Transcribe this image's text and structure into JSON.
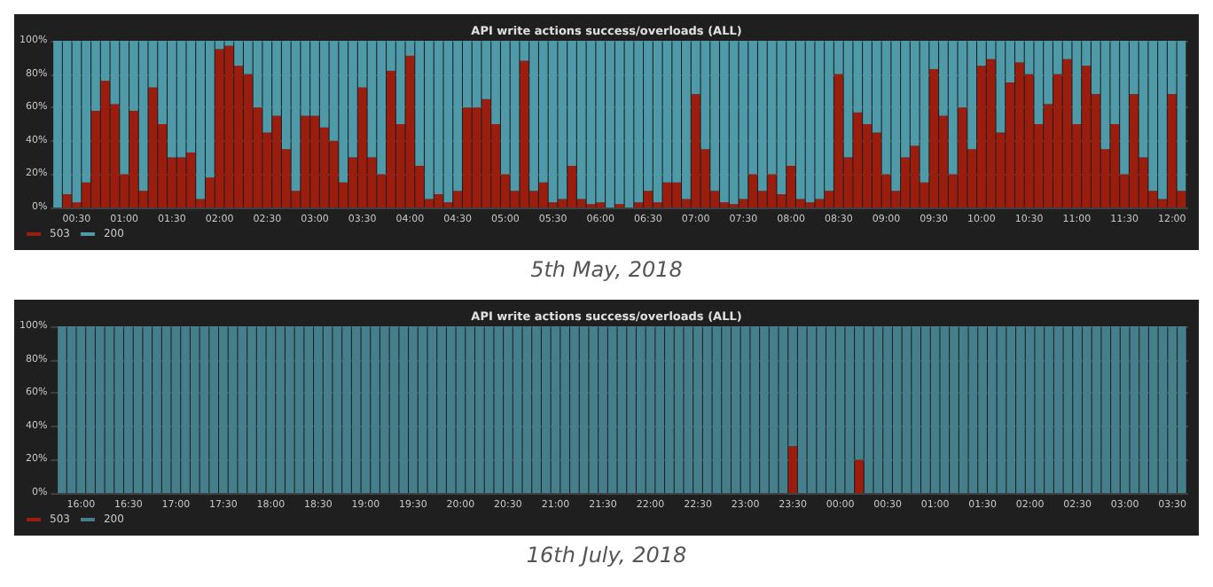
{
  "chart_data": [
    {
      "type": "bar",
      "title": "API write actions success/overloads (ALL)",
      "stacked": true,
      "grid": true,
      "legend": "bottom left",
      "annotations": [
        "5th May, 2018"
      ],
      "xlim": [
        0.23,
        12.17
      ],
      "ylim": [
        0,
        100
      ],
      "xticks": [
        {
          "value": 0.5,
          "label": "00:30"
        },
        {
          "value": 1,
          "label": "01:00"
        },
        {
          "value": 1.5,
          "label": "01:30"
        },
        {
          "value": 2,
          "label": "02:00"
        },
        {
          "value": 2.5,
          "label": "02:30"
        },
        {
          "value": 3,
          "label": "03:00"
        },
        {
          "value": 3.5,
          "label": "03:30"
        },
        {
          "value": 4,
          "label": "04:00"
        },
        {
          "value": 4.5,
          "label": "04:30"
        },
        {
          "value": 5,
          "label": "05:00"
        },
        {
          "value": 5.5,
          "label": "05:30"
        },
        {
          "value": 6,
          "label": "06:00"
        },
        {
          "value": 6.5,
          "label": "06:30"
        },
        {
          "value": 7,
          "label": "07:00"
        },
        {
          "value": 7.5,
          "label": "07:30"
        },
        {
          "value": 8,
          "label": "08:00"
        },
        {
          "value": 8.5,
          "label": "08:30"
        },
        {
          "value": 9,
          "label": "09:00"
        },
        {
          "value": 9.5,
          "label": "09:30"
        },
        {
          "value": 10,
          "label": "10:00"
        },
        {
          "value": 10.5,
          "label": "10:30"
        },
        {
          "value": 11,
          "label": "11:00"
        },
        {
          "value": 11.5,
          "label": "11:30"
        },
        {
          "value": 12,
          "label": "12:00"
        }
      ],
      "yticks": [
        {
          "value": 0,
          "label": "0%"
        },
        {
          "value": 20,
          "label": "20%"
        },
        {
          "value": 40,
          "label": "40%"
        },
        {
          "value": 60,
          "label": "60%"
        },
        {
          "value": 80,
          "label": "80%"
        },
        {
          "value": 100,
          "label": "100%"
        }
      ],
      "x": [
        0.3,
        0.4,
        0.5,
        0.6,
        0.7,
        0.8,
        0.9,
        1.0,
        1.1,
        1.2,
        1.3,
        1.4,
        1.5,
        1.6,
        1.7,
        1.8,
        1.9,
        2.0,
        2.1,
        2.2,
        2.3,
        2.4,
        2.5,
        2.6,
        2.7,
        2.8,
        2.9,
        3.0,
        3.1,
        3.2,
        3.3,
        3.4,
        3.5,
        3.6,
        3.7,
        3.8,
        3.9,
        4.0,
        4.1,
        4.2,
        4.3,
        4.4,
        4.5,
        4.6,
        4.7,
        4.8,
        4.9,
        5.0,
        5.1,
        5.2,
        5.3,
        5.4,
        5.5,
        5.6,
        5.7,
        5.8,
        5.9,
        6.0,
        6.1,
        6.2,
        6.3,
        6.4,
        6.5,
        6.6,
        6.7,
        6.8,
        6.9,
        7.0,
        7.1,
        7.2,
        7.3,
        7.4,
        7.5,
        7.6,
        7.7,
        7.8,
        7.9,
        8.0,
        8.1,
        8.2,
        8.3,
        8.4,
        8.5,
        8.6,
        8.7,
        8.8,
        8.9,
        9.0,
        9.1,
        9.2,
        9.3,
        9.4,
        9.5,
        9.6,
        9.7,
        9.8,
        9.9,
        10.0,
        10.1,
        10.2,
        10.3,
        10.4,
        10.5,
        10.6,
        10.7,
        10.8,
        10.9,
        11.0,
        11.1,
        11.2,
        11.3,
        11.4,
        11.5,
        11.6,
        11.7,
        11.8,
        11.9,
        12.0,
        12.1
      ],
      "series": [
        {
          "name": "503",
          "color": "#9b1d0e",
          "values": [
            0,
            8,
            3,
            15,
            58,
            76,
            62,
            20,
            58,
            10,
            72,
            50,
            30,
            30,
            33,
            5,
            18,
            95,
            97,
            85,
            80,
            60,
            45,
            55,
            35,
            10,
            55,
            55,
            48,
            40,
            15,
            30,
            72,
            30,
            20,
            82,
            50,
            91,
            25,
            5,
            8,
            3,
            10,
            60,
            60,
            65,
            50,
            20,
            10,
            88,
            10,
            15,
            3,
            5,
            25,
            5,
            2,
            3,
            0,
            2,
            0,
            3,
            10,
            3,
            15,
            15,
            5,
            68,
            35,
            10,
            3,
            2,
            5,
            20,
            10,
            20,
            8,
            25,
            5,
            3,
            5,
            10,
            80,
            30,
            57,
            50,
            45,
            20,
            10,
            30,
            37,
            15,
            83,
            55,
            20,
            60,
            35,
            85,
            89,
            45,
            75,
            87,
            80,
            50,
            62,
            80,
            89,
            50,
            85,
            68,
            35,
            50,
            20,
            68,
            30,
            10,
            5,
            68,
            10
          ]
        },
        {
          "name": "200",
          "color": "#4f9aa8",
          "values": [
            100,
            92,
            97,
            85,
            42,
            24,
            38,
            80,
            42,
            90,
            28,
            50,
            70,
            70,
            67,
            95,
            82,
            5,
            3,
            15,
            20,
            40,
            55,
            45,
            65,
            90,
            45,
            45,
            52,
            60,
            85,
            70,
            28,
            70,
            80,
            18,
            50,
            9,
            75,
            95,
            92,
            97,
            90,
            40,
            40,
            35,
            50,
            80,
            90,
            12,
            90,
            85,
            97,
            95,
            75,
            95,
            98,
            97,
            100,
            98,
            100,
            97,
            90,
            97,
            85,
            85,
            95,
            32,
            65,
            90,
            97,
            98,
            95,
            80,
            90,
            80,
            92,
            75,
            95,
            97,
            95,
            90,
            20,
            70,
            43,
            50,
            55,
            80,
            90,
            70,
            63,
            85,
            17,
            45,
            80,
            40,
            65,
            15,
            11,
            55,
            25,
            13,
            20,
            50,
            38,
            20,
            11,
            50,
            15,
            32,
            65,
            50,
            80,
            32,
            70,
            90,
            95,
            32,
            90
          ]
        }
      ]
    },
    {
      "type": "bar",
      "title": "API write actions success/overloads (ALL)",
      "stacked": true,
      "grid": true,
      "legend": "bottom left",
      "annotations": [
        "16th July, 2018"
      ],
      "xlim": [
        "2018-07-16T15:41",
        "2018-07-17T03:40"
      ],
      "ylim": [
        0,
        100
      ],
      "xticks": [
        {
          "value": "2018-07-16T16:00",
          "label": "16:00"
        },
        {
          "value": "2018-07-16T16:30",
          "label": "16:30"
        },
        {
          "value": "2018-07-16T17:00",
          "label": "17:00"
        },
        {
          "value": "2018-07-16T17:30",
          "label": "17:30"
        },
        {
          "value": "2018-07-16T18:00",
          "label": "18:00"
        },
        {
          "value": "2018-07-16T18:30",
          "label": "18:30"
        },
        {
          "value": "2018-07-16T19:00",
          "label": "19:00"
        },
        {
          "value": "2018-07-16T19:30",
          "label": "19:30"
        },
        {
          "value": "2018-07-16T20:00",
          "label": "20:00"
        },
        {
          "value": "2018-07-16T20:30",
          "label": "20:30"
        },
        {
          "value": "2018-07-16T21:00",
          "label": "21:00"
        },
        {
          "value": "2018-07-16T21:30",
          "label": "21:30"
        },
        {
          "value": "2018-07-16T22:00",
          "label": "22:00"
        },
        {
          "value": "2018-07-16T22:30",
          "label": "22:30"
        },
        {
          "value": "2018-07-16T23:00",
          "label": "23:00"
        },
        {
          "value": "2018-07-16T23:30",
          "label": "23:30"
        },
        {
          "value": "2018-07-17T00:00",
          "label": "00:00"
        },
        {
          "value": "2018-07-17T00:30",
          "label": "00:30"
        },
        {
          "value": "2018-07-17T01:00",
          "label": "01:00"
        },
        {
          "value": "2018-07-17T01:30",
          "label": "01:30"
        },
        {
          "value": "2018-07-17T02:00",
          "label": "02:00"
        },
        {
          "value": "2018-07-17T02:30",
          "label": "02:30"
        },
        {
          "value": "2018-07-17T03:00",
          "label": "03:00"
        },
        {
          "value": "2018-07-17T03:30",
          "label": "03:30"
        }
      ],
      "yticks": [
        {
          "value": 0,
          "label": "0%"
        },
        {
          "value": 20,
          "label": "20%"
        },
        {
          "value": 40,
          "label": "40%"
        },
        {
          "value": 60,
          "label": "60%"
        },
        {
          "value": 80,
          "label": "80%"
        },
        {
          "value": 100,
          "label": "100%"
        }
      ],
      "x": [
        "2018-07-16T15:48",
        "2018-07-16T15:54",
        "2018-07-16T16:00",
        "2018-07-16T16:06",
        "2018-07-16T16:12",
        "2018-07-16T16:18",
        "2018-07-16T16:24",
        "2018-07-16T16:30",
        "2018-07-16T16:36",
        "2018-07-16T16:42",
        "2018-07-16T16:48",
        "2018-07-16T16:54",
        "2018-07-16T17:00",
        "2018-07-16T17:06",
        "2018-07-16T17:12",
        "2018-07-16T17:18",
        "2018-07-16T17:24",
        "2018-07-16T17:30",
        "2018-07-16T17:36",
        "2018-07-16T17:42",
        "2018-07-16T17:48",
        "2018-07-16T17:54",
        "2018-07-16T18:00",
        "2018-07-16T18:06",
        "2018-07-16T18:12",
        "2018-07-16T18:18",
        "2018-07-16T18:24",
        "2018-07-16T18:30",
        "2018-07-16T18:36",
        "2018-07-16T18:42",
        "2018-07-16T18:48",
        "2018-07-16T18:54",
        "2018-07-16T19:00",
        "2018-07-16T19:06",
        "2018-07-16T19:12",
        "2018-07-16T19:18",
        "2018-07-16T19:24",
        "2018-07-16T19:30",
        "2018-07-16T19:36",
        "2018-07-16T19:42",
        "2018-07-16T19:48",
        "2018-07-16T19:54",
        "2018-07-16T20:00",
        "2018-07-16T20:06",
        "2018-07-16T20:12",
        "2018-07-16T20:18",
        "2018-07-16T20:24",
        "2018-07-16T20:30",
        "2018-07-16T20:36",
        "2018-07-16T20:42",
        "2018-07-16T20:48",
        "2018-07-16T20:54",
        "2018-07-16T21:00",
        "2018-07-16T21:06",
        "2018-07-16T21:12",
        "2018-07-16T21:18",
        "2018-07-16T21:24",
        "2018-07-16T21:30",
        "2018-07-16T21:36",
        "2018-07-16T21:42",
        "2018-07-16T21:48",
        "2018-07-16T21:54",
        "2018-07-16T22:00",
        "2018-07-16T22:06",
        "2018-07-16T22:12",
        "2018-07-16T22:18",
        "2018-07-16T22:24",
        "2018-07-16T22:30",
        "2018-07-16T22:36",
        "2018-07-16T22:42",
        "2018-07-16T22:48",
        "2018-07-16T22:54",
        "2018-07-16T23:00",
        "2018-07-16T23:06",
        "2018-07-16T23:12",
        "2018-07-16T23:18",
        "2018-07-16T23:24",
        "2018-07-16T23:30",
        "2018-07-16T23:36",
        "2018-07-16T23:42",
        "2018-07-16T23:48",
        "2018-07-16T23:54",
        "2018-07-17T00:00",
        "2018-07-17T00:06",
        "2018-07-17T00:12",
        "2018-07-17T00:18",
        "2018-07-17T00:24",
        "2018-07-17T00:30",
        "2018-07-17T00:36",
        "2018-07-17T00:42",
        "2018-07-17T00:48",
        "2018-07-17T00:54",
        "2018-07-17T01:00",
        "2018-07-17T01:06",
        "2018-07-17T01:12",
        "2018-07-17T01:18",
        "2018-07-17T01:24",
        "2018-07-17T01:30",
        "2018-07-17T01:36",
        "2018-07-17T01:42",
        "2018-07-17T01:48",
        "2018-07-17T01:54",
        "2018-07-17T02:00",
        "2018-07-17T02:06",
        "2018-07-17T02:12",
        "2018-07-17T02:18",
        "2018-07-17T02:24",
        "2018-07-17T02:30",
        "2018-07-17T02:36",
        "2018-07-17T02:42",
        "2018-07-17T02:48",
        "2018-07-17T02:54",
        "2018-07-17T03:00",
        "2018-07-17T03:06",
        "2018-07-17T03:12",
        "2018-07-17T03:18",
        "2018-07-17T03:24",
        "2018-07-17T03:30",
        "2018-07-17T03:36"
      ],
      "series": [
        {
          "name": "503",
          "color": "#9b1d0e",
          "values": [
            0,
            0,
            0,
            0,
            0,
            0,
            0,
            0,
            0,
            0,
            0,
            0,
            0,
            0,
            0,
            0,
            0,
            0,
            0,
            0,
            0,
            0,
            0,
            0,
            0,
            0,
            0,
            0,
            0,
            0,
            0,
            0,
            0,
            0,
            0,
            0,
            0,
            0,
            0,
            0,
            0,
            0,
            0,
            0,
            0,
            0,
            0,
            0,
            0,
            0,
            0,
            0,
            0,
            0,
            0,
            0,
            0,
            0,
            0,
            0,
            0,
            0,
            0,
            0,
            0,
            0,
            0,
            0,
            0,
            0,
            0,
            0,
            0,
            0,
            0,
            0,
            0,
            28,
            0,
            0,
            0,
            0,
            0,
            0,
            20,
            0,
            0,
            0,
            0,
            0,
            0,
            0,
            0,
            0,
            0,
            0,
            0,
            0,
            0,
            0,
            0,
            0,
            0,
            0,
            0,
            0,
            0,
            0,
            0,
            0,
            0,
            0,
            0,
            0,
            0,
            0,
            0,
            0,
            0
          ]
        },
        {
          "name": "200",
          "color": "#467f8c",
          "values": [
            100,
            100,
            100,
            100,
            100,
            100,
            100,
            100,
            100,
            100,
            100,
            100,
            100,
            100,
            100,
            100,
            100,
            100,
            100,
            100,
            100,
            100,
            100,
            100,
            100,
            100,
            100,
            100,
            100,
            100,
            100,
            100,
            100,
            100,
            100,
            100,
            100,
            100,
            100,
            100,
            100,
            100,
            100,
            100,
            100,
            100,
            100,
            100,
            100,
            100,
            100,
            100,
            100,
            100,
            100,
            100,
            100,
            100,
            100,
            100,
            100,
            100,
            100,
            100,
            100,
            100,
            100,
            100,
            100,
            100,
            100,
            100,
            100,
            100,
            100,
            100,
            100,
            72,
            100,
            100,
            100,
            100,
            100,
            100,
            80,
            100,
            100,
            100,
            100,
            100,
            100,
            100,
            100,
            100,
            100,
            100,
            100,
            100,
            100,
            100,
            100,
            100,
            100,
            100,
            100,
            100,
            100,
            100,
            100,
            100,
            100,
            100,
            100,
            100,
            100,
            100,
            100,
            100,
            100
          ]
        }
      ]
    }
  ]
}
